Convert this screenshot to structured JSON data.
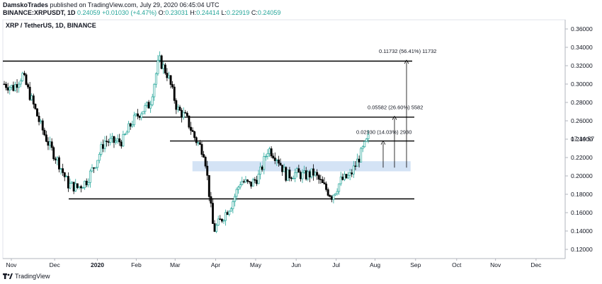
{
  "header": {
    "line1": {
      "author": "DamskoTrades",
      "text": " published on TradingView.com, July 29, 2020 06:45:04 UTC"
    },
    "symbol": "BINANCE:XRPUSDT, 1D",
    "last": "0.24059",
    "change": "+0.01030 (+4.47%)",
    "o_label": "O:",
    "o": "0.23031",
    "h_label": "H:",
    "h": "0.24414",
    "l_label": "L:",
    "l": "0.22919",
    "c_label": "C:",
    "c": "0.24059"
  },
  "footer": {
    "brand": "TradingView"
  },
  "colors": {
    "up": "#26a69a",
    "down": "#000000",
    "zone": "#c9dcf3",
    "text": "#131722"
  },
  "chart_data": {
    "type": "candlestick",
    "title": "XRP / TetherUS, 1D, BINANCE",
    "y_ticks": [
      "0.36000",
      "0.34000",
      "0.32000",
      "0.30000",
      "0.28000",
      "0.26000",
      "0.24000",
      "0.22000",
      "0.20000",
      "0.18000",
      "0.16000",
      "0.14000",
      "0.12000"
    ],
    "ylim": [
      0.11,
      0.37
    ],
    "x_ticks": [
      "Nov",
      "Dec",
      "2020",
      "Feb",
      "Mar",
      "Apr",
      "May",
      "Jun",
      "Jul",
      "Aug",
      "Sep",
      "Oct",
      "Nov",
      "Dec"
    ],
    "countdown": "17:14:57",
    "horizontal_levels": [
      0.325,
      0.264,
      0.238,
      0.175
    ],
    "support_zone": [
      0.205,
      0.216
    ],
    "projections": [
      {
        "label": "0.02930 (14.03%) 2930",
        "from": 0.209,
        "to": 0.238
      },
      {
        "label": "0.05582 (26.60%) 5582",
        "from": 0.209,
        "to": 0.265
      },
      {
        "label": "0.11732 (56.41%) 11732",
        "from": 0.209,
        "to": 0.326
      }
    ],
    "price_path": [
      [
        "Nov",
        0.3
      ],
      [
        "Nov",
        0.296
      ],
      [
        "Nov",
        0.31
      ],
      [
        "Nov",
        0.283
      ],
      [
        "Dec",
        0.255
      ],
      [
        "Dec",
        0.232
      ],
      [
        "Dec",
        0.214
      ],
      [
        "Dec",
        0.191
      ],
      [
        "Dec",
        0.187
      ],
      [
        "2020",
        0.194
      ],
      [
        "2020",
        0.213
      ],
      [
        "2020",
        0.238
      ],
      [
        "2020",
        0.237
      ],
      [
        "2020",
        0.238
      ],
      [
        "2020",
        0.258
      ],
      [
        "Feb",
        0.27
      ],
      [
        "Feb",
        0.278
      ],
      [
        "Feb",
        0.327
      ],
      [
        "Feb",
        0.309
      ],
      [
        "Feb",
        0.273
      ],
      [
        "Mar",
        0.263
      ],
      [
        "Mar",
        0.24
      ],
      [
        "Mar",
        0.225
      ],
      [
        "Mar",
        0.14
      ],
      [
        "Mar",
        0.155
      ],
      [
        "Apr",
        0.17
      ],
      [
        "Apr",
        0.195
      ],
      [
        "Apr",
        0.19
      ],
      [
        "Apr",
        0.2
      ],
      [
        "May",
        0.23
      ],
      [
        "May",
        0.22
      ],
      [
        "May",
        0.2
      ],
      [
        "May",
        0.203
      ],
      [
        "Jun",
        0.2
      ],
      [
        "Jun",
        0.203
      ],
      [
        "Jun",
        0.19
      ],
      [
        "Jul",
        0.178
      ],
      [
        "Jul",
        0.195
      ],
      [
        "Jul",
        0.2
      ],
      [
        "Jul",
        0.22
      ],
      [
        "Jul",
        0.241
      ]
    ]
  }
}
